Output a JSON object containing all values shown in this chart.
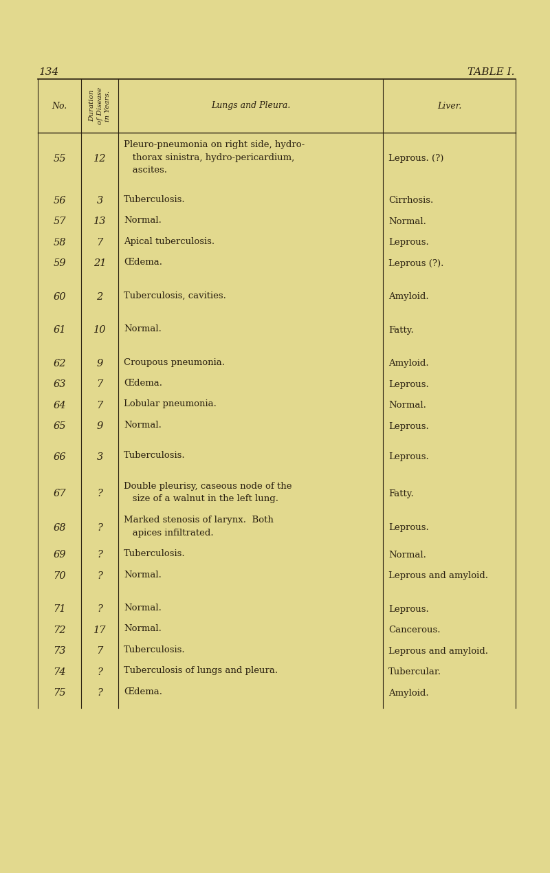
{
  "page_number": "134",
  "table_title": "TABLE I.",
  "bg_color": "#e2d98e",
  "line_color": "#2a2010",
  "text_color": "#2a2010",
  "header_no": "No.",
  "header_dur": "Duration\nof Disease\nin Years.",
  "header_lungs": "Lungs and Pleura.",
  "header_liver": "Liver.",
  "rows": [
    {
      "no": "55",
      "dur": "12",
      "lungs": [
        "Pleuro-pneumonia on right side, hydro-",
        "   thorax sinistra, hydro-pericardium,",
        "   ascites."
      ],
      "liver": "Leprous. (?)",
      "extra_after": 12
    },
    {
      "no": "56",
      "dur": "3",
      "lungs": [
        "Tuberculosis."
      ],
      "liver": "Cirrhosis.",
      "extra_after": 0
    },
    {
      "no": "57",
      "dur": "13",
      "lungs": [
        "Normal."
      ],
      "liver": "Normal.",
      "extra_after": 0
    },
    {
      "no": "58",
      "dur": "7",
      "lungs": [
        "Apical tuberculosis."
      ],
      "liver": "Leprous.",
      "extra_after": 0
    },
    {
      "no": "59",
      "dur": "21",
      "lungs": [
        "Œdema."
      ],
      "liver": "Leprous (?).",
      "extra_after": 18
    },
    {
      "no": "60",
      "dur": "2",
      "lungs": [
        "Tuberculosis, cavities."
      ],
      "liver": "Amyloid.",
      "extra_after": 18
    },
    {
      "no": "61",
      "dur": "10",
      "lungs": [
        "Normal."
      ],
      "liver": "Fatty.",
      "extra_after": 18
    },
    {
      "no": "62",
      "dur": "9",
      "lungs": [
        "Croupous pneumonia."
      ],
      "liver": "Amyloid.",
      "extra_after": 0
    },
    {
      "no": "63",
      "dur": "7",
      "lungs": [
        "Œdema."
      ],
      "liver": "Leprous.",
      "extra_after": 0
    },
    {
      "no": "64",
      "dur": "7",
      "lungs": [
        "Lobular pneumonia."
      ],
      "liver": "Normal.",
      "extra_after": 0
    },
    {
      "no": "65",
      "dur": "9",
      "lungs": [
        "Normal."
      ],
      "liver": "Leprous.",
      "extra_after": 14
    },
    {
      "no": "66",
      "dur": "3",
      "lungs": [
        "Tuberculosis."
      ],
      "liver": "Leprous.",
      "extra_after": 14
    },
    {
      "no": "67",
      "dur": "?",
      "lungs": [
        "Double pleurisy, caseous node of the",
        "   size of a walnut in the left lung."
      ],
      "liver": "Fatty.",
      "extra_after": 0
    },
    {
      "no": "68",
      "dur": "?",
      "lungs": [
        "Marked stenosis of larynx.  Both",
        "   apices infiltrated."
      ],
      "liver": "Leprous.",
      "extra_after": 0
    },
    {
      "no": "69",
      "dur": "?",
      "lungs": [
        "Tuberculosis."
      ],
      "liver": "Normal.",
      "extra_after": 0
    },
    {
      "no": "70",
      "dur": "?",
      "lungs": [
        "Normal."
      ],
      "liver": "Leprous and amyloid.",
      "extra_after": 18
    },
    {
      "no": "71",
      "dur": "?",
      "lungs": [
        "Normal."
      ],
      "liver": "Leprous.",
      "extra_after": 0
    },
    {
      "no": "72",
      "dur": "17",
      "lungs": [
        "Normal."
      ],
      "liver": "Cancerous.",
      "extra_after": 0
    },
    {
      "no": "73",
      "dur": "7",
      "lungs": [
        "Tuberculosis."
      ],
      "liver": "Leprous and amyloid.",
      "extra_after": 0
    },
    {
      "no": "74",
      "dur": "?",
      "lungs": [
        "Tuberculosis of lungs and pleura."
      ],
      "liver": "Tubercular.",
      "extra_after": 0
    },
    {
      "no": "75",
      "dur": "?",
      "lungs": [
        "Œdema."
      ],
      "liver": "Amyloid.",
      "extra_after": 0
    }
  ]
}
